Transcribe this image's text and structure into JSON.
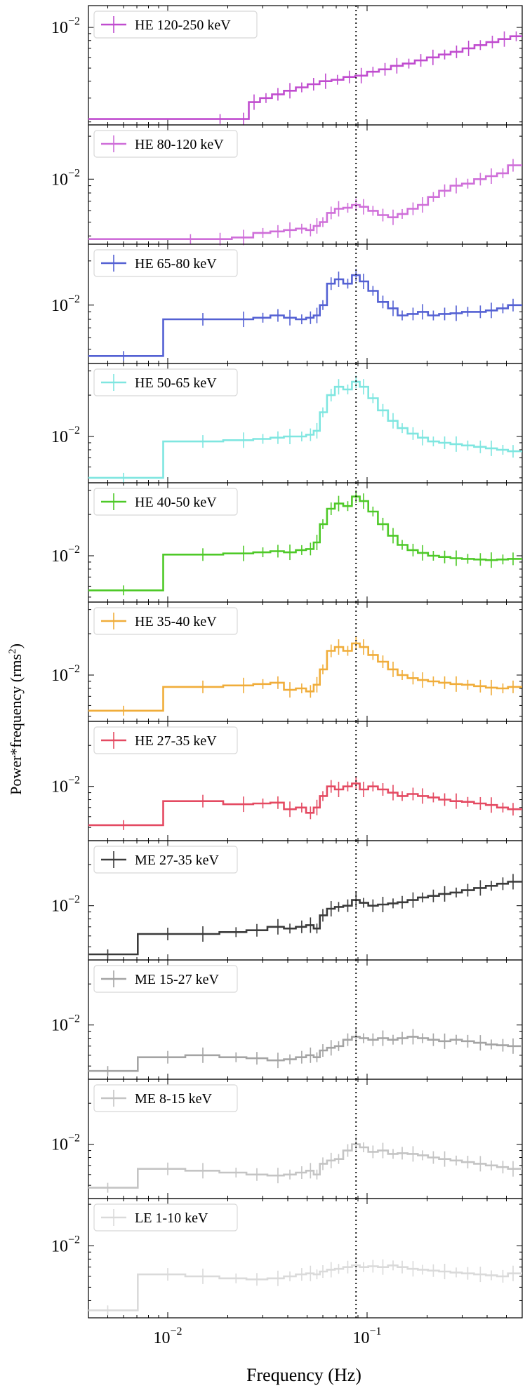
{
  "figure": {
    "ylabel_main": "Power*frequency (rms",
    "ylabel_sup": "2",
    "ylabel_close": ")",
    "xlabel": "Frequency (Hz)",
    "reference_line_freq": 0.088
  },
  "chart_data": {
    "type": "line",
    "title": "",
    "xlabel": "Frequency (Hz)",
    "ylabel": "Power*frequency (rms2)",
    "xscale": "log",
    "yscale": "log",
    "xlim": [
      0.004,
      0.6
    ],
    "x_ticks": [
      {
        "value": 0.01,
        "base": "10",
        "exp": "−2"
      },
      {
        "value": 0.1,
        "base": "10",
        "exp": "−1"
      }
    ],
    "reference_line": {
      "x": 0.088,
      "style": "dotted"
    },
    "legend_position": "top-left",
    "grid": false,
    "panels": [
      {
        "name": "HE 120-250 keV",
        "color": "#c04ccf",
        "ylim": [
          0.0019,
          0.0145
        ],
        "ytick": {
          "value": 0.01,
          "base": "10",
          "exp": "−2"
        },
        "x": [
          0.0183,
          0.024,
          0.0271,
          0.0311,
          0.0357,
          0.041,
          0.047,
          0.0539,
          0.0619,
          0.071,
          0.0815,
          0.0935,
          0.107,
          0.123,
          0.141,
          0.162,
          0.186,
          0.214,
          0.245,
          0.281,
          0.323,
          0.37,
          0.425,
          0.488,
          0.56
        ],
        "y": [
          0.0021,
          0.0021,
          0.0028,
          0.003,
          0.0032,
          0.0034,
          0.0036,
          0.0038,
          0.004,
          0.0041,
          0.0043,
          0.0044,
          0.0047,
          0.0049,
          0.0052,
          0.0054,
          0.0057,
          0.006,
          0.0063,
          0.0066,
          0.007,
          0.0074,
          0.0078,
          0.0082,
          0.0086
        ]
      },
      {
        "name": "HE 80-120 keV",
        "color": "#cf6fd9",
        "ylim": [
          0.0035,
          0.024
        ],
        "ytick": {
          "value": 0.01,
          "base": "10",
          "exp": "−2"
        },
        "x": [
          0.013,
          0.0183,
          0.024,
          0.03,
          0.0357,
          0.041,
          0.047,
          0.052,
          0.056,
          0.06,
          0.066,
          0.072,
          0.08,
          0.088,
          0.096,
          0.107,
          0.12,
          0.135,
          0.15,
          0.17,
          0.19,
          0.215,
          0.245,
          0.28,
          0.32,
          0.37,
          0.42,
          0.48,
          0.54
        ],
        "y": [
          0.0038,
          0.0038,
          0.0039,
          0.0042,
          0.0043,
          0.0044,
          0.0045,
          0.0044,
          0.0047,
          0.005,
          0.0058,
          0.0062,
          0.0063,
          0.0066,
          0.0064,
          0.006,
          0.0056,
          0.0054,
          0.0057,
          0.0062,
          0.0066,
          0.0075,
          0.0083,
          0.009,
          0.0093,
          0.01,
          0.0105,
          0.011,
          0.0125
        ]
      },
      {
        "name": "HE 65-80 keV",
        "color": "#5461d3",
        "ylim": [
          0.004,
          0.026
        ],
        "ytick": {
          "value": 0.01,
          "base": "10",
          "exp": "−2"
        },
        "x": [
          0.006,
          0.015,
          0.024,
          0.03,
          0.0357,
          0.041,
          0.047,
          0.052,
          0.056,
          0.06,
          0.066,
          0.072,
          0.08,
          0.088,
          0.096,
          0.107,
          0.12,
          0.135,
          0.15,
          0.17,
          0.19,
          0.215,
          0.245,
          0.28,
          0.32,
          0.37,
          0.42,
          0.48,
          0.54
        ],
        "y": [
          0.0045,
          0.008,
          0.008,
          0.0082,
          0.0085,
          0.0082,
          0.008,
          0.0082,
          0.0085,
          0.01,
          0.014,
          0.015,
          0.014,
          0.016,
          0.0145,
          0.0125,
          0.0105,
          0.0095,
          0.0085,
          0.0087,
          0.009,
          0.0085,
          0.0087,
          0.0088,
          0.009,
          0.009,
          0.0092,
          0.0095,
          0.01
        ]
      },
      {
        "name": "HE 50-65 keV",
        "color": "#7fe6e0",
        "ylim": [
          0.0046,
          0.034
        ],
        "ytick": {
          "value": 0.01,
          "base": "10",
          "exp": "−2"
        },
        "x": [
          0.006,
          0.015,
          0.024,
          0.03,
          0.0357,
          0.041,
          0.047,
          0.052,
          0.056,
          0.06,
          0.066,
          0.072,
          0.08,
          0.088,
          0.096,
          0.107,
          0.12,
          0.135,
          0.15,
          0.17,
          0.19,
          0.215,
          0.245,
          0.28,
          0.32,
          0.37,
          0.42,
          0.48,
          0.54
        ],
        "y": [
          0.005,
          0.0092,
          0.0094,
          0.0096,
          0.0098,
          0.01,
          0.01,
          0.0103,
          0.011,
          0.015,
          0.02,
          0.023,
          0.022,
          0.025,
          0.023,
          0.019,
          0.0155,
          0.013,
          0.0115,
          0.0105,
          0.0098,
          0.0092,
          0.009,
          0.0088,
          0.0086,
          0.0084,
          0.0082,
          0.008,
          0.0078
        ]
      },
      {
        "name": "HE 40-50 keV",
        "color": "#4ec928",
        "ylim": [
          0.0046,
          0.034
        ],
        "ytick": {
          "value": 0.01,
          "base": "10",
          "exp": "−2"
        },
        "x": [
          0.006,
          0.015,
          0.024,
          0.03,
          0.0357,
          0.041,
          0.047,
          0.052,
          0.056,
          0.06,
          0.066,
          0.072,
          0.08,
          0.088,
          0.096,
          0.107,
          0.12,
          0.135,
          0.15,
          0.17,
          0.19,
          0.215,
          0.245,
          0.28,
          0.32,
          0.37,
          0.42,
          0.48,
          0.54
        ],
        "y": [
          0.0056,
          0.0102,
          0.0104,
          0.0106,
          0.0108,
          0.0106,
          0.011,
          0.0112,
          0.0125,
          0.017,
          0.022,
          0.024,
          0.023,
          0.027,
          0.025,
          0.021,
          0.017,
          0.014,
          0.012,
          0.011,
          0.0105,
          0.01,
          0.0098,
          0.0096,
          0.0095,
          0.0094,
          0.0093,
          0.0094,
          0.0095
        ]
      },
      {
        "name": "HE 35-40 keV",
        "color": "#f0ad3a",
        "ylim": [
          0.0046,
          0.034
        ],
        "ytick": {
          "value": 0.01,
          "base": "10",
          "exp": "−2"
        },
        "x": [
          0.006,
          0.015,
          0.024,
          0.03,
          0.0357,
          0.041,
          0.047,
          0.052,
          0.056,
          0.06,
          0.066,
          0.072,
          0.08,
          0.088,
          0.096,
          0.107,
          0.12,
          0.135,
          0.15,
          0.17,
          0.19,
          0.215,
          0.245,
          0.28,
          0.32,
          0.37,
          0.42,
          0.48,
          0.54
        ],
        "y": [
          0.0055,
          0.0082,
          0.0084,
          0.0086,
          0.0088,
          0.0078,
          0.008,
          0.0076,
          0.0085,
          0.011,
          0.015,
          0.016,
          0.015,
          0.017,
          0.016,
          0.014,
          0.0125,
          0.011,
          0.01,
          0.0095,
          0.0092,
          0.009,
          0.0088,
          0.0086,
          0.0085,
          0.0083,
          0.0081,
          0.008,
          0.0082
        ]
      },
      {
        "name": "HE 27-35 keV",
        "color": "#e44a62",
        "ylim": [
          0.004,
          0.03
        ],
        "ytick": {
          "value": 0.01,
          "base": "10",
          "exp": "−2"
        },
        "x": [
          0.006,
          0.015,
          0.024,
          0.03,
          0.0357,
          0.041,
          0.047,
          0.052,
          0.056,
          0.06,
          0.066,
          0.072,
          0.08,
          0.088,
          0.096,
          0.107,
          0.12,
          0.135,
          0.15,
          0.17,
          0.19,
          0.215,
          0.245,
          0.28,
          0.32,
          0.37,
          0.42,
          0.48,
          0.54
        ],
        "y": [
          0.0052,
          0.0078,
          0.0074,
          0.0075,
          0.0076,
          0.0068,
          0.007,
          0.0064,
          0.007,
          0.0085,
          0.01,
          0.0095,
          0.01,
          0.0105,
          0.0095,
          0.01,
          0.0095,
          0.009,
          0.0085,
          0.0088,
          0.0085,
          0.0083,
          0.008,
          0.0078,
          0.0077,
          0.0075,
          0.0073,
          0.007,
          0.0068
        ]
      },
      {
        "name": "ME 27-35 keV",
        "color": "#3a3a3a",
        "ylim": [
          0.004,
          0.03
        ],
        "ytick": {
          "value": 0.01,
          "base": "10",
          "exp": "−2"
        },
        "x": [
          0.005,
          0.01,
          0.015,
          0.022,
          0.028,
          0.0357,
          0.041,
          0.047,
          0.052,
          0.056,
          0.06,
          0.066,
          0.072,
          0.08,
          0.088,
          0.096,
          0.107,
          0.12,
          0.135,
          0.15,
          0.17,
          0.19,
          0.215,
          0.245,
          0.28,
          0.32,
          0.37,
          0.42,
          0.48,
          0.54
        ],
        "y": [
          0.0044,
          0.0062,
          0.0062,
          0.0064,
          0.0066,
          0.007,
          0.0068,
          0.007,
          0.0072,
          0.0068,
          0.0085,
          0.0095,
          0.0098,
          0.01,
          0.011,
          0.0105,
          0.01,
          0.0102,
          0.0104,
          0.0106,
          0.011,
          0.0115,
          0.0118,
          0.0122,
          0.0125,
          0.013,
          0.0135,
          0.014,
          0.0145,
          0.015
        ]
      },
      {
        "name": "ME 15-27 keV",
        "color": "#a4a4a4",
        "ylim": [
          0.004,
          0.03
        ],
        "ytick": {
          "value": 0.01,
          "base": "10",
          "exp": "−2"
        },
        "x": [
          0.005,
          0.01,
          0.015,
          0.022,
          0.028,
          0.0357,
          0.041,
          0.047,
          0.052,
          0.056,
          0.06,
          0.066,
          0.072,
          0.08,
          0.088,
          0.096,
          0.107,
          0.12,
          0.135,
          0.15,
          0.17,
          0.19,
          0.215,
          0.245,
          0.28,
          0.32,
          0.37,
          0.42,
          0.48,
          0.54
        ],
        "y": [
          0.0046,
          0.0058,
          0.006,
          0.0058,
          0.0057,
          0.0055,
          0.0056,
          0.0058,
          0.006,
          0.0058,
          0.0065,
          0.0068,
          0.007,
          0.0078,
          0.0082,
          0.008,
          0.0078,
          0.008,
          0.0078,
          0.008,
          0.0082,
          0.008,
          0.0078,
          0.0076,
          0.0078,
          0.0076,
          0.0074,
          0.0072,
          0.0071,
          0.007
        ]
      },
      {
        "name": "ME 8-15 keV",
        "color": "#c4c4c4",
        "ylim": [
          0.004,
          0.03
        ],
        "ytick": {
          "value": 0.01,
          "base": "10",
          "exp": "−2"
        },
        "x": [
          0.005,
          0.01,
          0.015,
          0.022,
          0.028,
          0.0357,
          0.041,
          0.047,
          0.052,
          0.056,
          0.06,
          0.066,
          0.072,
          0.08,
          0.088,
          0.096,
          0.107,
          0.12,
          0.135,
          0.15,
          0.17,
          0.19,
          0.215,
          0.245,
          0.28,
          0.32,
          0.37,
          0.42,
          0.48,
          0.54
        ],
        "y": [
          0.0048,
          0.0066,
          0.0064,
          0.0062,
          0.006,
          0.0059,
          0.006,
          0.0062,
          0.0064,
          0.006,
          0.0072,
          0.0076,
          0.0078,
          0.009,
          0.01,
          0.0095,
          0.0088,
          0.009,
          0.0085,
          0.0086,
          0.0085,
          0.0083,
          0.008,
          0.0078,
          0.0076,
          0.0074,
          0.0072,
          0.007,
          0.0068,
          0.0066
        ]
      },
      {
        "name": "LE 1-10 keV",
        "color": "#dadada",
        "ylim": [
          0.003,
          0.022
        ],
        "ytick": {
          "value": 0.01,
          "base": "10",
          "exp": "−2"
        },
        "x": [
          0.005,
          0.01,
          0.015,
          0.022,
          0.028,
          0.0357,
          0.041,
          0.047,
          0.052,
          0.056,
          0.06,
          0.066,
          0.072,
          0.08,
          0.088,
          0.096,
          0.107,
          0.12,
          0.135,
          0.15,
          0.17,
          0.19,
          0.215,
          0.245,
          0.28,
          0.32,
          0.37,
          0.42,
          0.48,
          0.54
        ],
        "y": [
          0.0034,
          0.0062,
          0.006,
          0.0058,
          0.0057,
          0.0058,
          0.006,
          0.0062,
          0.0063,
          0.0062,
          0.0065,
          0.0067,
          0.0068,
          0.007,
          0.0072,
          0.007,
          0.0071,
          0.007,
          0.0072,
          0.007,
          0.0068,
          0.0067,
          0.0066,
          0.0065,
          0.0064,
          0.0063,
          0.0062,
          0.0061,
          0.006,
          0.0063
        ]
      }
    ]
  }
}
